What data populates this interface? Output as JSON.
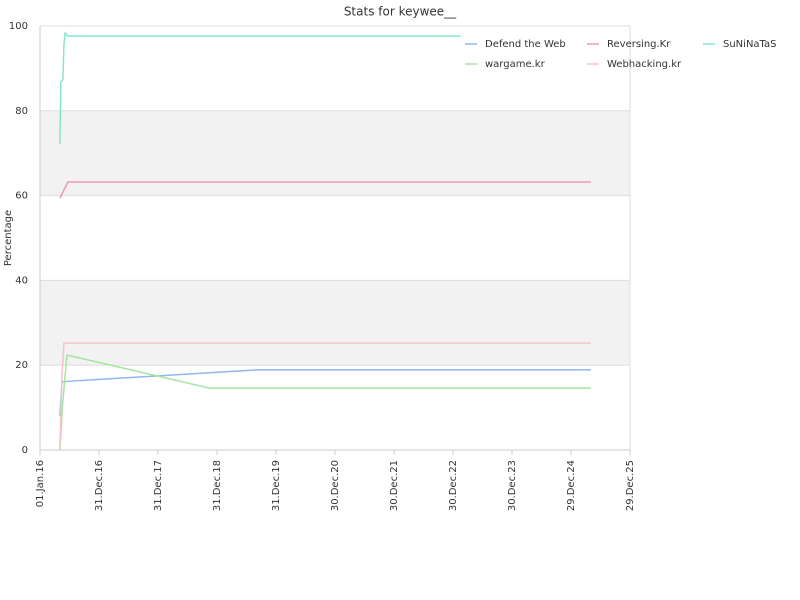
{
  "chart_data": {
    "type": "line",
    "title": "Stats for keywee__",
    "y_label": "Percentage",
    "xlim": [
      "2016-01-01",
      "2025-12-29"
    ],
    "xticks": [
      {
        "value": "2016-01-01",
        "label": "01.Jan.16"
      },
      {
        "value": "2016-12-31",
        "label": "31.Dec.16"
      },
      {
        "value": "2017-12-31",
        "label": "31.Dec.17"
      },
      {
        "value": "2018-12-31",
        "label": "31.Dec.18"
      },
      {
        "value": "2019-12-31",
        "label": "31.Dec.19"
      },
      {
        "value": "2020-12-30",
        "label": "30.Dec.20"
      },
      {
        "value": "2021-12-30",
        "label": "30.Dec.21"
      },
      {
        "value": "2022-12-30",
        "label": "30.Dec.22"
      },
      {
        "value": "2023-12-30",
        "label": "30.Dec.23"
      },
      {
        "value": "2024-12-29",
        "label": "29.Dec.24"
      },
      {
        "value": "2025-12-29",
        "label": "29.Dec.25"
      }
    ],
    "ylim": [
      0,
      100
    ],
    "yticks": [
      0,
      20,
      40,
      60,
      80,
      100
    ],
    "grid": true,
    "legend": "top-right",
    "series": [
      {
        "name": "Defend the Web",
        "color": "#8fb8ee",
        "x": [
          "2016-05-03",
          "2016-05-16",
          "2016-06-22",
          "2019-09-01",
          "2025-05-01"
        ],
        "values": [
          8,
          16,
          16.2,
          18.9,
          18.9
        ]
      },
      {
        "name": "Reversing.Kr",
        "color": "#ee9aae",
        "x": [
          "2016-05-03",
          "2016-06-22",
          "2025-05-01"
        ],
        "values": [
          59.4,
          63.2,
          63.2
        ]
      },
      {
        "name": "SuNiNaTaS",
        "color": "#86e6cc",
        "x": [
          "2016-05-03",
          "2016-05-09",
          "2016-05-22",
          "2016-05-28",
          "2016-06-04",
          "2016-06-22",
          "2023-02-15"
        ],
        "values": [
          72.2,
          86.8,
          87.3,
          95.5,
          98.3,
          97.6,
          97.6
        ]
      },
      {
        "name": "wargame.kr",
        "color": "#a4e6a0",
        "x": [
          "2016-05-03",
          "2016-05-22",
          "2016-06-16",
          "2018-11-15",
          "2025-05-01"
        ],
        "values": [
          0,
          11.8,
          22.4,
          14.6,
          14.6
        ]
      },
      {
        "name": "Webhacking.kr",
        "color": "#f6c2ca",
        "x": [
          "2016-05-03",
          "2016-05-16",
          "2016-05-28",
          "2025-05-01"
        ],
        "values": [
          0,
          17.7,
          25.2,
          25.2
        ]
      }
    ]
  }
}
